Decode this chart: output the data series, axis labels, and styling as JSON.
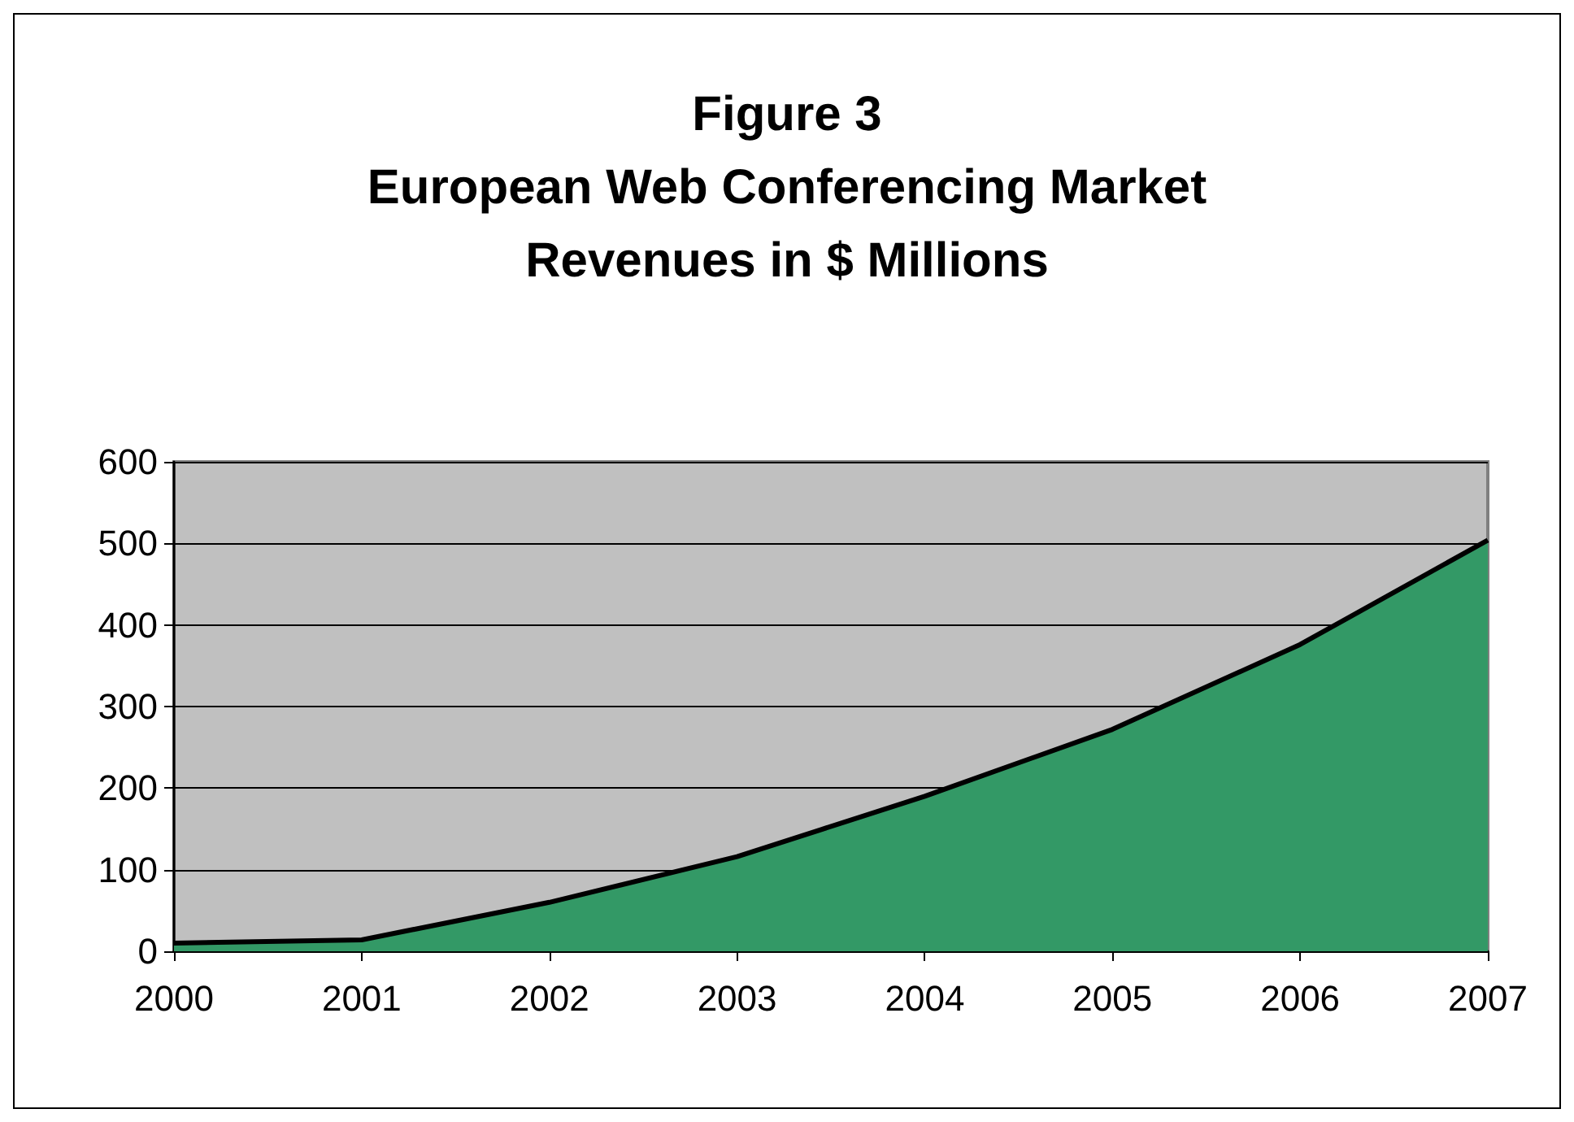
{
  "chart_data": {
    "type": "area",
    "title": "Figure 3\nEuropean Web Conferencing Market\nRevenues in $ Millions",
    "categories": [
      "2000",
      "2001",
      "2002",
      "2003",
      "2004",
      "2005",
      "2006",
      "2007"
    ],
    "values": [
      10,
      14,
      60,
      116,
      190,
      272,
      376,
      504
    ],
    "color": "#339966",
    "ylim": [
      0,
      600
    ],
    "yticks": [
      0,
      100,
      200,
      300,
      400,
      500,
      600
    ],
    "grid": "y"
  }
}
